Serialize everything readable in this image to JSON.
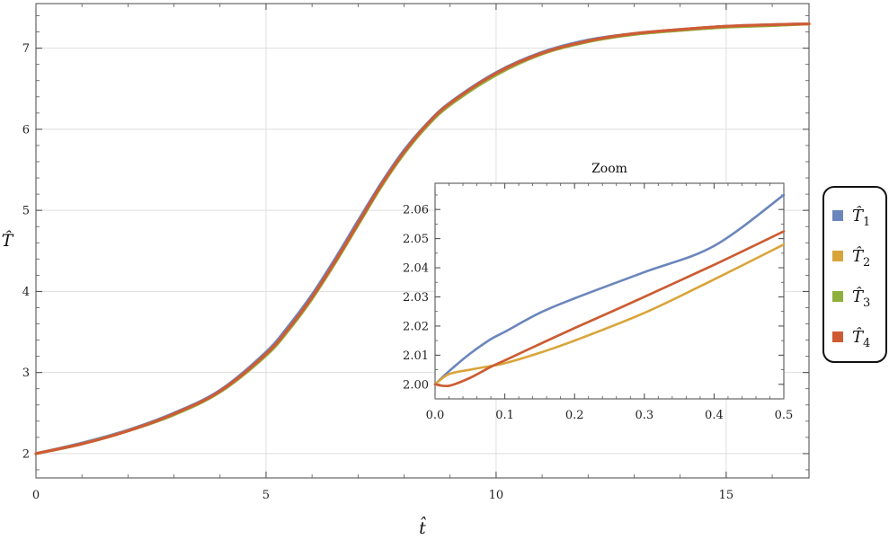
{
  "chart_data": [
    {
      "type": "line",
      "xlabel": "t̂",
      "ylabel": "T̂",
      "xlim": [
        0,
        16.8
      ],
      "ylim": [
        1.7,
        7.55
      ],
      "xticks": [
        0,
        5,
        10,
        15
      ],
      "yticks": [
        2,
        3,
        4,
        5,
        6,
        7
      ],
      "grid": true,
      "legend_position": "right",
      "series": [
        {
          "name": "T̂1",
          "color": "#6b86bc",
          "x": [
            0,
            1,
            2,
            3,
            4,
            5,
            5.5,
            6,
            6.5,
            7,
            7.5,
            8,
            8.5,
            9,
            10,
            11,
            12,
            13,
            14,
            15,
            16,
            16.8
          ],
          "y": [
            2.0,
            2.13,
            2.29,
            2.5,
            2.78,
            3.25,
            3.58,
            3.96,
            4.4,
            4.87,
            5.33,
            5.74,
            6.07,
            6.33,
            6.7,
            6.95,
            7.1,
            7.18,
            7.23,
            7.27,
            7.29,
            7.3
          ]
        },
        {
          "name": "T̂2",
          "color": "#d9a53a",
          "x": [
            0,
            1,
            2,
            3,
            4,
            5,
            5.5,
            6,
            6.5,
            7,
            7.5,
            8,
            8.5,
            9,
            10,
            11,
            12,
            13,
            14,
            15,
            16,
            16.8
          ],
          "y": [
            2.0,
            2.12,
            2.28,
            2.48,
            2.76,
            3.21,
            3.53,
            3.91,
            4.35,
            4.82,
            5.29,
            5.7,
            6.04,
            6.3,
            6.67,
            6.93,
            7.08,
            7.17,
            7.22,
            7.26,
            7.28,
            7.3
          ]
        },
        {
          "name": "T̂3",
          "color": "#8faf3d",
          "x": [
            0,
            1,
            2,
            3,
            4,
            5,
            5.5,
            6,
            6.5,
            7,
            7.5,
            8,
            8.5,
            9,
            10,
            11,
            12,
            13,
            14,
            15,
            16,
            16.8
          ],
          "y": [
            2.0,
            2.12,
            2.28,
            2.48,
            2.76,
            3.21,
            3.53,
            3.91,
            4.35,
            4.82,
            5.29,
            5.7,
            6.04,
            6.3,
            6.67,
            6.93,
            7.08,
            7.17,
            7.22,
            7.26,
            7.28,
            7.3
          ]
        },
        {
          "name": "T̂4",
          "color": "#cf5b35",
          "x": [
            0,
            1,
            2,
            3,
            4,
            5,
            5.5,
            6,
            6.5,
            7,
            7.5,
            8,
            8.5,
            9,
            10,
            11,
            12,
            13,
            14,
            15,
            16,
            16.8
          ],
          "y": [
            2.0,
            2.12,
            2.28,
            2.49,
            2.77,
            3.23,
            3.55,
            3.93,
            4.37,
            4.84,
            5.31,
            5.72,
            6.06,
            6.32,
            6.69,
            6.94,
            7.09,
            7.18,
            7.23,
            7.27,
            7.29,
            7.3
          ]
        }
      ]
    },
    {
      "type": "line",
      "title": "Zoom",
      "xlim": [
        0,
        0.5
      ],
      "ylim": [
        1.995,
        2.069
      ],
      "xticks": [
        0,
        0.1,
        0.2,
        0.3,
        0.4,
        0.5
      ],
      "yticks": [
        2.0,
        2.01,
        2.02,
        2.03,
        2.04,
        2.05,
        2.06
      ],
      "grid": false,
      "series": [
        {
          "name": "T̂1",
          "color": "#6b86bc",
          "x": [
            0,
            0.02,
            0.05,
            0.08,
            0.1,
            0.15,
            0.2,
            0.3,
            0.4,
            0.5
          ],
          "y": [
            2.0,
            2.0045,
            2.0105,
            2.0155,
            2.018,
            2.0245,
            2.0295,
            2.0385,
            2.0475,
            2.065
          ]
        },
        {
          "name": "T̂2",
          "color": "#d9a53a",
          "x": [
            0,
            0.02,
            0.05,
            0.08,
            0.1,
            0.15,
            0.2,
            0.3,
            0.4,
            0.5
          ],
          "y": [
            2.0,
            2.0035,
            2.005,
            2.0063,
            2.0072,
            2.0108,
            2.015,
            2.0245,
            2.036,
            2.048
          ]
        },
        {
          "name": "T̂3",
          "color": "#8faf3d",
          "x": [
            0,
            0.02,
            0.05,
            0.08,
            0.1,
            0.15,
            0.2,
            0.3,
            0.4,
            0.5
          ],
          "y": [
            2.0,
            1.9995,
            2.0022,
            2.006,
            2.0082,
            2.0138,
            2.0193,
            2.03,
            2.041,
            2.0525
          ]
        },
        {
          "name": "T̂4",
          "color": "#cf5b35",
          "x": [
            0,
            0.02,
            0.05,
            0.08,
            0.1,
            0.15,
            0.2,
            0.3,
            0.4,
            0.5
          ],
          "y": [
            2.0,
            1.9995,
            2.0022,
            2.006,
            2.0082,
            2.0138,
            2.0193,
            2.03,
            2.041,
            2.0525
          ]
        }
      ]
    }
  ],
  "legend": {
    "items": [
      {
        "base": "T̂",
        "sub": "1",
        "color": "#6b86bc"
      },
      {
        "base": "T̂",
        "sub": "2",
        "color": "#d9a53a"
      },
      {
        "base": "T̂",
        "sub": "3",
        "color": "#8faf3d"
      },
      {
        "base": "T̂",
        "sub": "4",
        "color": "#cf5b35"
      }
    ]
  }
}
